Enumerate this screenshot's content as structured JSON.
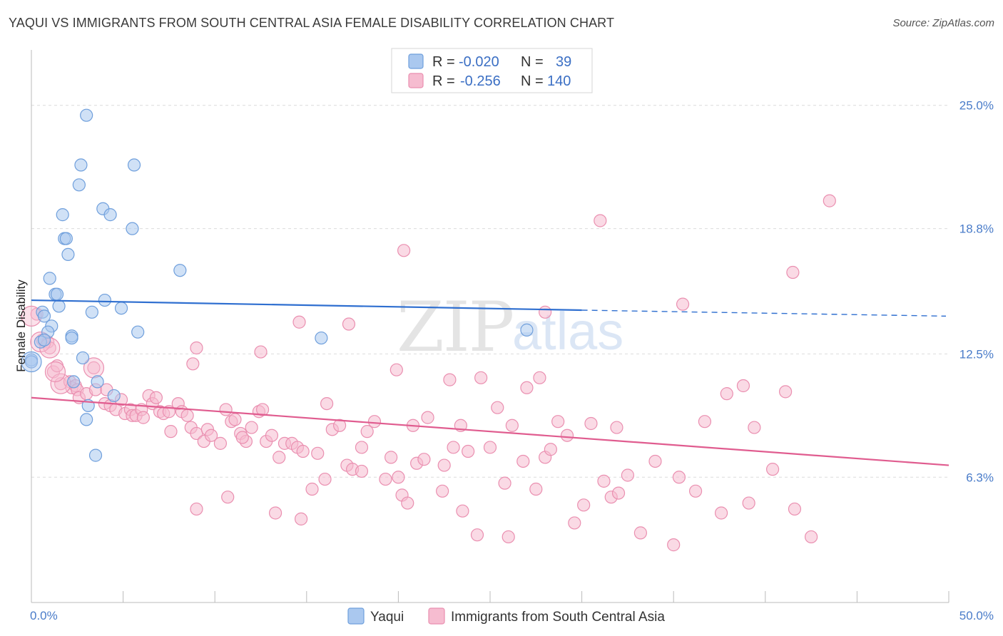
{
  "header": {
    "title": "YAQUI VS IMMIGRANTS FROM SOUTH CENTRAL ASIA FEMALE DISABILITY CORRELATION CHART",
    "source": "Source: ZipAtlas.com"
  },
  "watermark": {
    "zip": "ZIP",
    "atlas": "atlas"
  },
  "colors": {
    "yaqui_fill": "#aac8ef",
    "yaqui_stroke": "#6f9fdc",
    "yaqui_line": "#2f6fd0",
    "immig_fill": "#f6bcd0",
    "immig_stroke": "#ea8fb0",
    "immig_line": "#e05c8f",
    "grid": "#dcdcdc",
    "axis_label": "#4a7cc9"
  },
  "legend_top": {
    "rows": [
      {
        "r_label": "R = ",
        "r_value": "-0.020",
        "n_label": "N = ",
        "n_value": "39"
      },
      {
        "r_label": "R = ",
        "r_value": "-0.256",
        "n_label": "N = ",
        "n_value": "140"
      }
    ]
  },
  "chart_data": {
    "type": "scatter",
    "xlabel": "",
    "ylabel": "Female Disability",
    "xlim": [
      0,
      50
    ],
    "ylim": [
      0,
      27.5
    ],
    "x_tick_labels": [
      {
        "value": 0,
        "label": "0.0%"
      },
      {
        "value": 50,
        "label": "50.0%"
      }
    ],
    "y_tick_labels": [
      {
        "value": 6.3,
        "label": "6.3%"
      },
      {
        "value": 12.5,
        "label": "12.5%"
      },
      {
        "value": 18.8,
        "label": "18.8%"
      },
      {
        "value": 25.0,
        "label": "25.0%"
      }
    ],
    "grid": true,
    "legend": "bottom-center",
    "series": [
      {
        "name": "Yaqui",
        "trend": {
          "x": [
            0,
            30
          ],
          "y": [
            15.2,
            14.7
          ],
          "dashed_to": [
            50,
            14.4
          ]
        },
        "points": [
          [
            3.0,
            24.5
          ],
          [
            2.7,
            22.0
          ],
          [
            5.6,
            22.0
          ],
          [
            2.6,
            21.0
          ],
          [
            3.9,
            19.8
          ],
          [
            1.7,
            19.5
          ],
          [
            4.3,
            19.5
          ],
          [
            5.5,
            18.8
          ],
          [
            1.8,
            18.3
          ],
          [
            1.9,
            18.3
          ],
          [
            2.0,
            17.5
          ],
          [
            8.1,
            16.7
          ],
          [
            1.0,
            16.3
          ],
          [
            1.3,
            15.5
          ],
          [
            1.4,
            15.5
          ],
          [
            4.0,
            15.2
          ],
          [
            1.5,
            14.9
          ],
          [
            0.6,
            14.6
          ],
          [
            3.3,
            14.6
          ],
          [
            4.9,
            14.8
          ],
          [
            0.7,
            14.4
          ],
          [
            1.1,
            13.9
          ],
          [
            5.8,
            13.6
          ],
          [
            0.9,
            13.6
          ],
          [
            27.0,
            13.7
          ],
          [
            15.8,
            13.3
          ],
          [
            0.5,
            13.1
          ],
          [
            0.7,
            13.2
          ],
          [
            2.2,
            13.4
          ],
          [
            2.2,
            13.3
          ],
          [
            2.8,
            12.3
          ],
          [
            0.0,
            12.2
          ],
          [
            0.0,
            12.1
          ],
          [
            2.3,
            11.1
          ],
          [
            3.6,
            11.1
          ],
          [
            4.5,
            10.4
          ],
          [
            3.1,
            9.9
          ],
          [
            3.0,
            9.2
          ],
          [
            3.5,
            7.4
          ]
        ],
        "big_points": [
          [
            0.0,
            12.1
          ]
        ]
      },
      {
        "name": "Immigrants from South Central Asia",
        "trend": {
          "x": [
            0,
            50
          ],
          "y": [
            10.3,
            6.9
          ]
        },
        "points": [
          [
            43.5,
            20.2
          ],
          [
            31.0,
            19.2
          ],
          [
            20.3,
            17.7
          ],
          [
            41.5,
            16.6
          ],
          [
            35.5,
            15.0
          ],
          [
            28.0,
            14.6
          ],
          [
            14.6,
            14.1
          ],
          [
            17.3,
            14.0
          ],
          [
            0.3,
            14.5
          ],
          [
            0.6,
            13.2
          ],
          [
            0.9,
            13.1
          ],
          [
            1.0,
            12.8
          ],
          [
            12.5,
            12.6
          ],
          [
            9.0,
            12.8
          ],
          [
            8.8,
            12.0
          ],
          [
            19.9,
            11.7
          ],
          [
            1.2,
            11.6
          ],
          [
            1.4,
            11.9
          ],
          [
            3.4,
            11.8
          ],
          [
            1.6,
            11.0
          ],
          [
            2.1,
            11.1
          ],
          [
            2.2,
            10.8
          ],
          [
            2.4,
            10.9
          ],
          [
            2.5,
            10.7
          ],
          [
            2.6,
            10.3
          ],
          [
            3.0,
            10.5
          ],
          [
            3.5,
            10.7
          ],
          [
            4.1,
            10.7
          ],
          [
            4.0,
            10.0
          ],
          [
            4.3,
            9.9
          ],
          [
            4.6,
            9.7
          ],
          [
            4.9,
            10.2
          ],
          [
            5.1,
            9.5
          ],
          [
            5.4,
            9.7
          ],
          [
            5.5,
            9.4
          ],
          [
            5.7,
            9.4
          ],
          [
            6.0,
            9.7
          ],
          [
            6.1,
            9.3
          ],
          [
            6.4,
            10.4
          ],
          [
            6.6,
            10.0
          ],
          [
            6.8,
            10.3
          ],
          [
            7.0,
            9.6
          ],
          [
            7.2,
            9.5
          ],
          [
            7.5,
            9.6
          ],
          [
            7.6,
            8.6
          ],
          [
            8.0,
            10.0
          ],
          [
            8.2,
            9.6
          ],
          [
            8.5,
            9.4
          ],
          [
            8.7,
            8.8
          ],
          [
            9.0,
            8.5
          ],
          [
            9.4,
            8.1
          ],
          [
            9.6,
            8.7
          ],
          [
            9.8,
            8.4
          ],
          [
            10.3,
            8.0
          ],
          [
            10.6,
            9.7
          ],
          [
            10.9,
            9.1
          ],
          [
            11.1,
            9.2
          ],
          [
            11.4,
            8.5
          ],
          [
            11.7,
            8.1
          ],
          [
            12.0,
            8.8
          ],
          [
            12.4,
            9.6
          ],
          [
            12.6,
            9.7
          ],
          [
            12.8,
            8.1
          ],
          [
            13.1,
            8.4
          ],
          [
            13.5,
            7.3
          ],
          [
            13.8,
            8.0
          ],
          [
            14.2,
            8.0
          ],
          [
            14.5,
            7.8
          ],
          [
            14.8,
            7.6
          ],
          [
            15.3,
            5.7
          ],
          [
            15.6,
            7.5
          ],
          [
            16.1,
            10.0
          ],
          [
            16.4,
            8.7
          ],
          [
            16.8,
            8.9
          ],
          [
            17.2,
            6.9
          ],
          [
            17.5,
            6.7
          ],
          [
            18.0,
            7.8
          ],
          [
            18.3,
            8.6
          ],
          [
            18.7,
            9.1
          ],
          [
            19.3,
            6.2
          ],
          [
            19.6,
            7.3
          ],
          [
            20.0,
            6.3
          ],
          [
            20.2,
            5.4
          ],
          [
            20.5,
            5.0
          ],
          [
            20.8,
            8.9
          ],
          [
            21.0,
            7.0
          ],
          [
            21.6,
            9.3
          ],
          [
            22.4,
            5.6
          ],
          [
            22.5,
            6.9
          ],
          [
            22.8,
            11.2
          ],
          [
            23.0,
            7.8
          ],
          [
            23.4,
            8.9
          ],
          [
            23.8,
            7.6
          ],
          [
            24.5,
            11.3
          ],
          [
            25.0,
            7.8
          ],
          [
            25.4,
            9.8
          ],
          [
            25.8,
            6.0
          ],
          [
            26.2,
            8.9
          ],
          [
            26.8,
            7.1
          ],
          [
            27.0,
            10.8
          ],
          [
            27.7,
            11.3
          ],
          [
            28.0,
            7.3
          ],
          [
            28.7,
            9.1
          ],
          [
            29.2,
            8.4
          ],
          [
            29.6,
            4.0
          ],
          [
            30.5,
            9.0
          ],
          [
            31.2,
            6.1
          ],
          [
            31.6,
            5.3
          ],
          [
            31.9,
            8.8
          ],
          [
            32.5,
            6.4
          ],
          [
            33.2,
            3.5
          ],
          [
            35.3,
            6.3
          ],
          [
            34.0,
            7.1
          ],
          [
            35.0,
            2.9
          ],
          [
            36.2,
            5.6
          ],
          [
            36.7,
            9.1
          ],
          [
            37.6,
            4.5
          ],
          [
            37.9,
            10.5
          ],
          [
            38.8,
            10.9
          ],
          [
            39.1,
            5.0
          ],
          [
            39.4,
            8.8
          ],
          [
            40.4,
            6.7
          ],
          [
            41.1,
            10.6
          ],
          [
            41.6,
            4.7
          ],
          [
            42.5,
            3.3
          ],
          [
            9.0,
            4.7
          ],
          [
            13.3,
            4.5
          ],
          [
            14.7,
            4.2
          ],
          [
            23.5,
            4.6
          ],
          [
            26.0,
            3.3
          ],
          [
            27.5,
            5.7
          ],
          [
            30.1,
            4.9
          ],
          [
            11.5,
            8.3
          ],
          [
            18.0,
            6.6
          ],
          [
            24.3,
            3.4
          ],
          [
            10.7,
            5.3
          ],
          [
            16.0,
            6.2
          ],
          [
            21.4,
            7.2
          ],
          [
            28.3,
            7.7
          ],
          [
            32.0,
            5.5
          ]
        ],
        "big_points": [
          [
            0.0,
            14.4
          ],
          [
            0.5,
            13.1
          ],
          [
            1.0,
            12.8
          ],
          [
            3.4,
            11.8
          ],
          [
            1.6,
            11.0
          ],
          [
            1.3,
            11.6
          ]
        ]
      }
    ]
  },
  "legend_bottom": {
    "items": [
      {
        "label": "Yaqui"
      },
      {
        "label": "Immigrants from South Central Asia"
      }
    ]
  }
}
